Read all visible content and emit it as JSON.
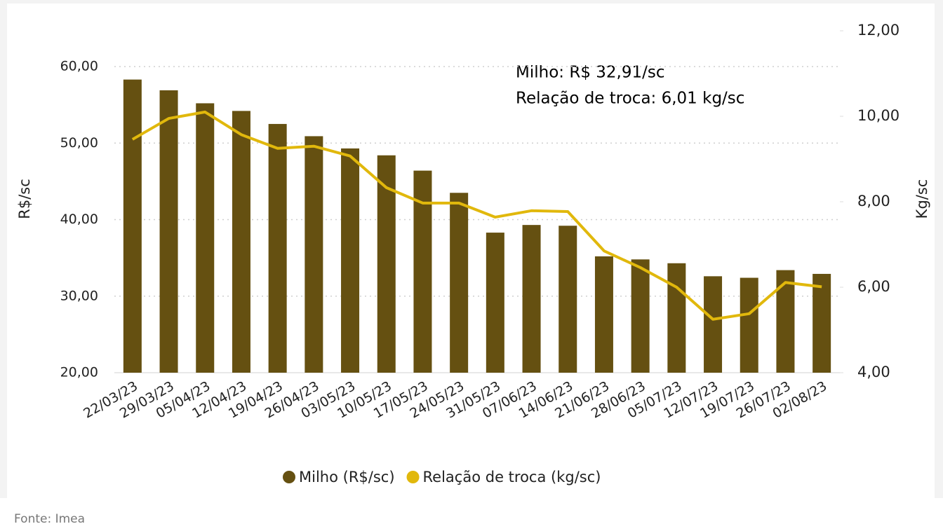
{
  "chart_data": {
    "type": "bar-line",
    "categories": [
      "22/03/23",
      "29/03/23",
      "05/04/23",
      "12/04/23",
      "19/04/23",
      "26/04/23",
      "03/05/23",
      "10/05/23",
      "17/05/23",
      "24/05/23",
      "31/05/23",
      "07/06/23",
      "14/06/23",
      "21/06/23",
      "28/06/23",
      "05/07/23",
      "12/07/23",
      "19/07/23",
      "26/07/23",
      "02/08/23"
    ],
    "series": [
      {
        "name": "Milho (R$/sc)",
        "type": "bar",
        "color": "#655011",
        "values": [
          58.3,
          56.9,
          55.2,
          54.2,
          52.5,
          50.9,
          49.3,
          48.4,
          46.4,
          43.5,
          38.3,
          39.3,
          39.2,
          35.2,
          34.8,
          34.3,
          32.6,
          32.4,
          33.4,
          32.91
        ]
      },
      {
        "name": "Relação de troca (kg/sc)",
        "type": "line",
        "axis": "y2",
        "color": "#e1b80c",
        "values": [
          9.46,
          9.95,
          10.1,
          9.57,
          9.25,
          9.3,
          9.07,
          8.33,
          7.97,
          7.97,
          7.64,
          7.79,
          7.77,
          6.85,
          6.46,
          6.0,
          5.25,
          5.38,
          6.11,
          6.01
        ]
      }
    ],
    "ylabel": "R$/sc",
    "y2label": "Kg/sc",
    "ylim": [
      20,
      60
    ],
    "yticks": [
      {
        "value": 20,
        "label": "20,00"
      },
      {
        "value": 30,
        "label": "30,00"
      },
      {
        "value": 40,
        "label": "40,00"
      },
      {
        "value": 50,
        "label": "50,00"
      },
      {
        "value": 60,
        "label": "60,00"
      }
    ],
    "y2lim": [
      4,
      12
    ],
    "y2ticks": [
      {
        "value": 4,
        "label": "4,00"
      },
      {
        "value": 6,
        "label": "6,00"
      },
      {
        "value": 8,
        "label": "8,00"
      },
      {
        "value": 10,
        "label": "10,00"
      },
      {
        "value": 12,
        "label": "12,00"
      }
    ],
    "grid": true,
    "annotations": [
      "Milho: R$ 32,91/sc",
      "Relação de troca: 6,01 kg/sc"
    ],
    "legend": "bottom"
  },
  "source": "Fonte: Imea"
}
